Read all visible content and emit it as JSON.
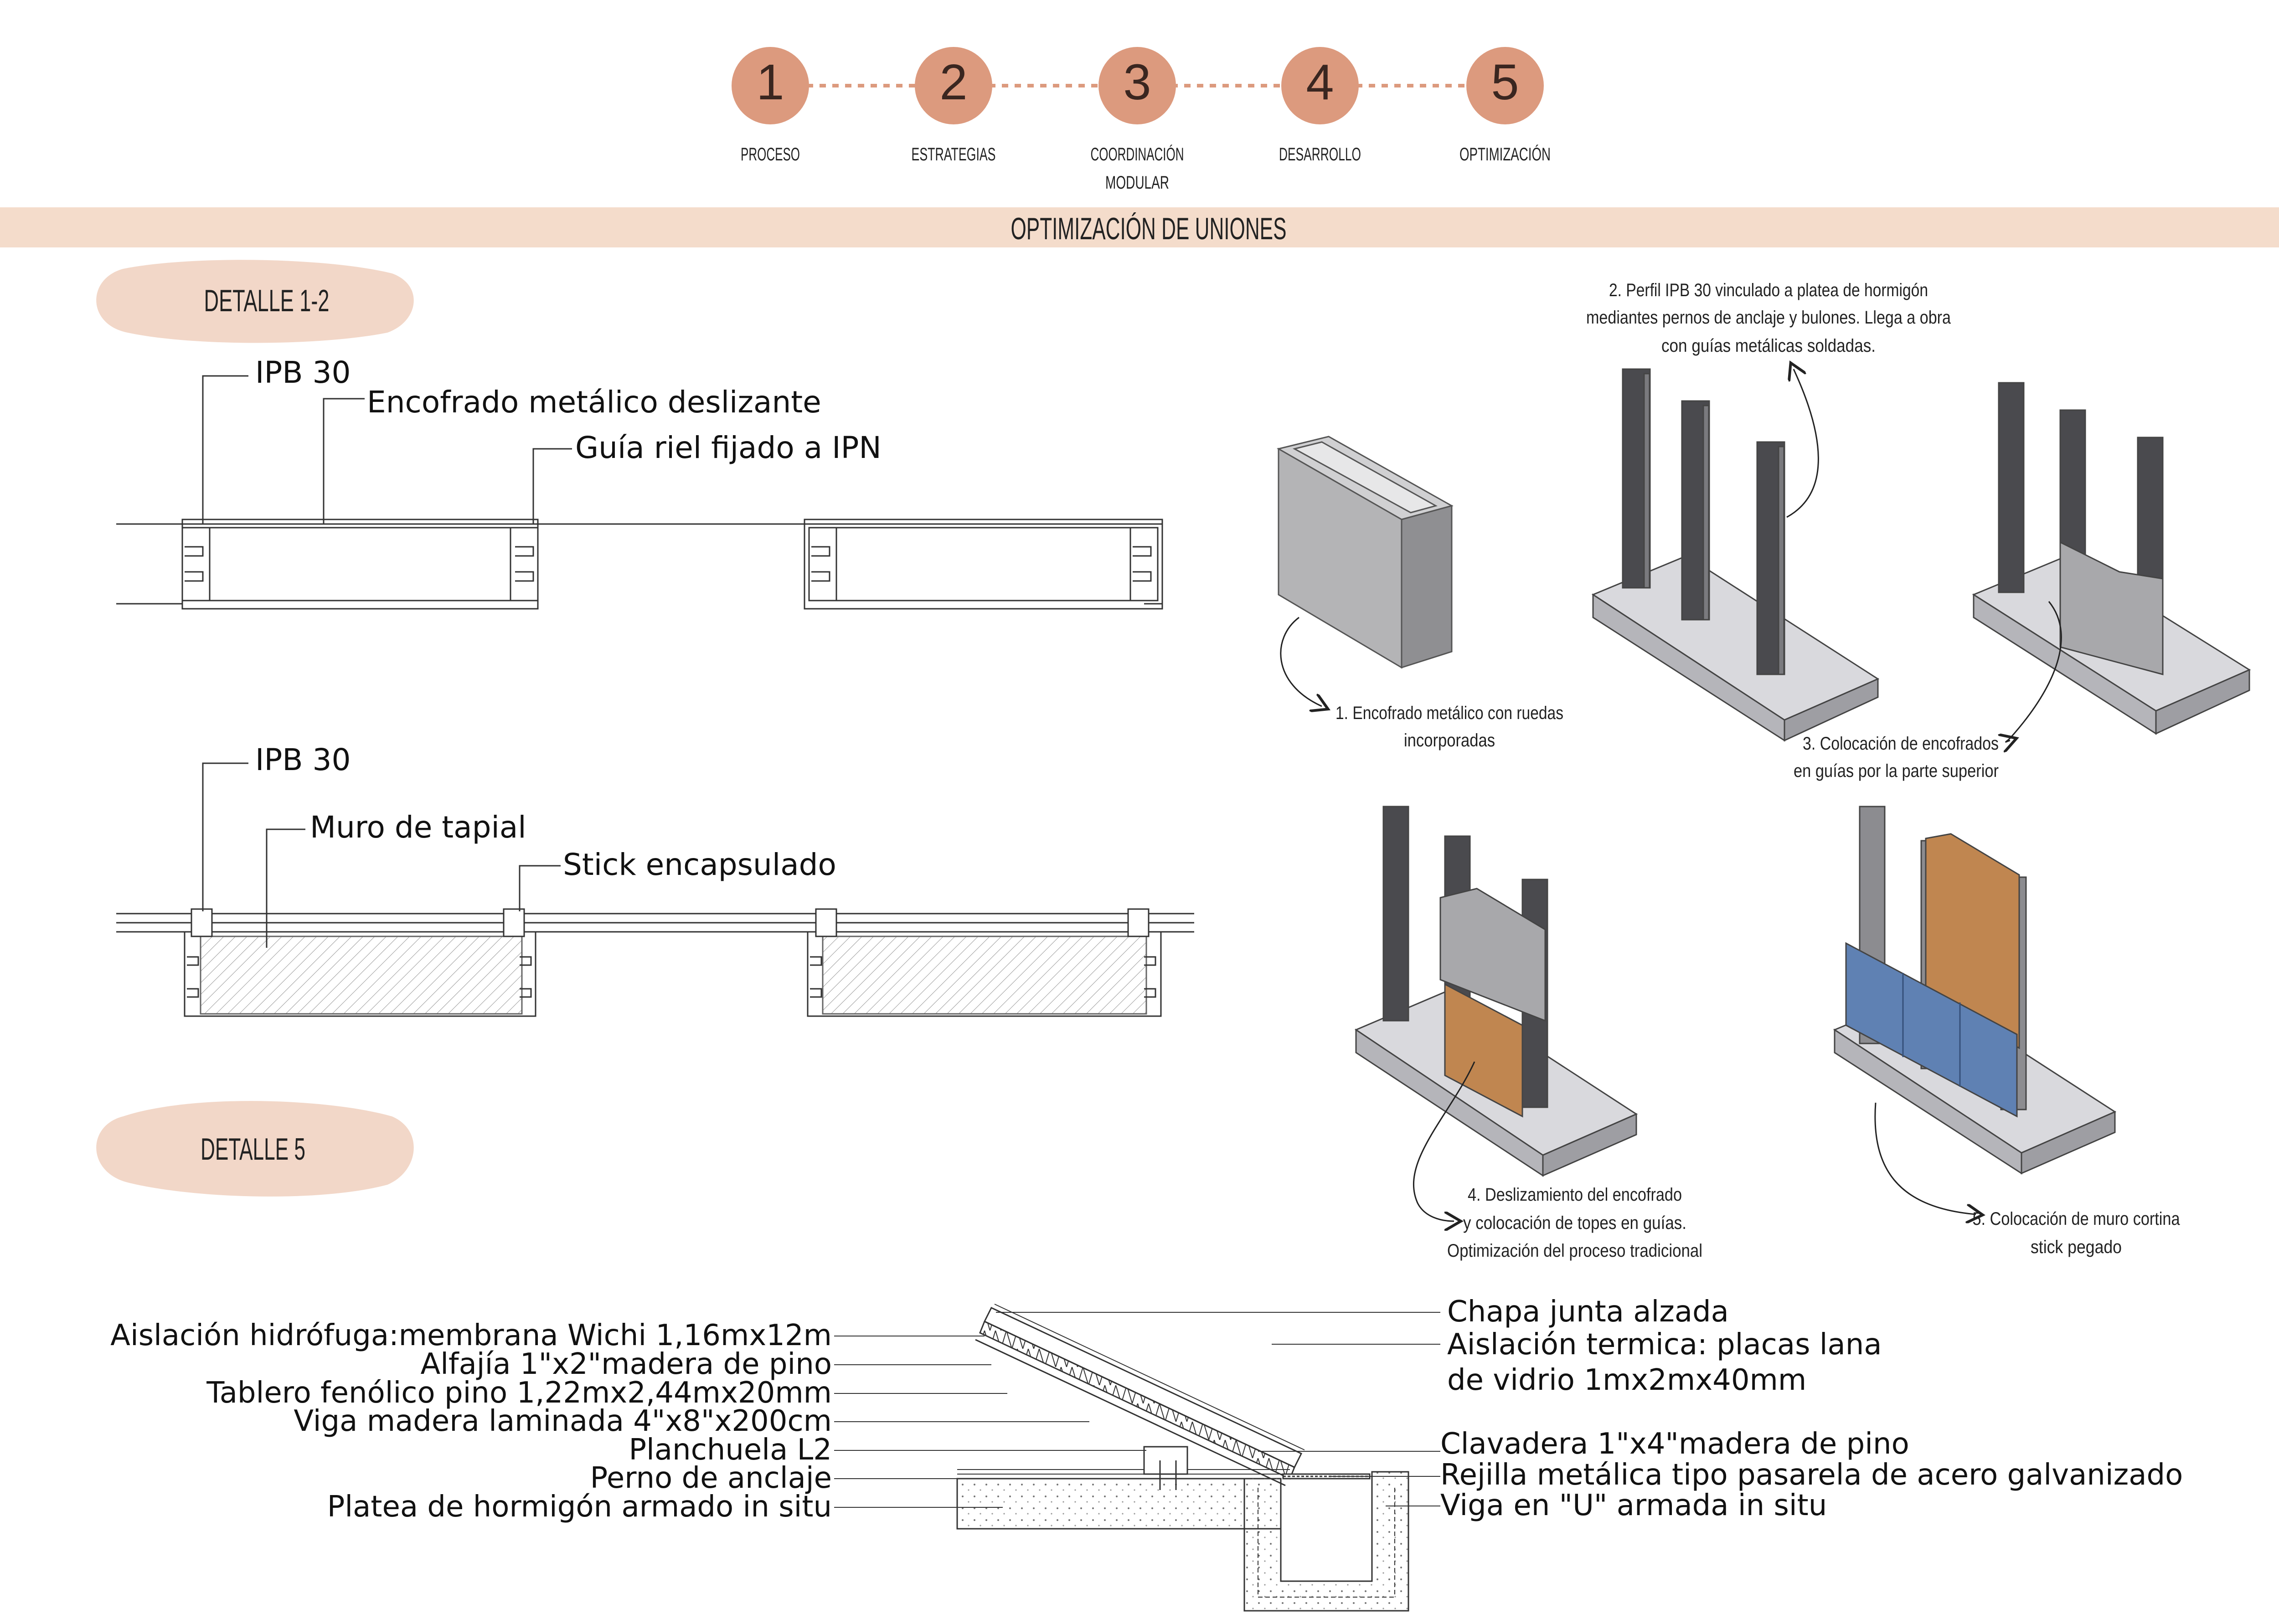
{
  "steps": [
    {
      "num": "1",
      "label": "PROCESO"
    },
    {
      "num": "2",
      "label": "ESTRATEGIAS"
    },
    {
      "num": "3",
      "label": "COORDINACIÓN",
      "label2": "MODULAR"
    },
    {
      "num": "4",
      "label": "DESARROLLO"
    },
    {
      "num": "5",
      "label": "OPTIMIZACIÓN"
    }
  ],
  "colors": {
    "step_circle": "#dc9a7e",
    "step_line": "#dc9a7e",
    "banner": "#f4dccb",
    "blob": "#f2d7c8",
    "concrete": "#c9c9ce",
    "steel": "#4a4a4e",
    "formwork": "#a5a5a7",
    "wood": "#c08650",
    "curtain": "#5f81b3"
  },
  "banner": {
    "title": "OPTIMIZACIÓN DE UNIONES"
  },
  "detail12": {
    "badge": "DETALLE 1-2",
    "plan1": {
      "label_profile": "IPB  30",
      "label_formwork": "Encofrado metálico deslizante",
      "label_rail": "Guía riel fijado a IPN"
    },
    "plan2": {
      "label_profile": "IPB  30",
      "label_wall": "Muro de tapial",
      "label_stick": "Stick encapsulado"
    }
  },
  "detail5": {
    "badge": "DETALLE 5",
    "left_labels": [
      "Aislación hidrófuga:membrana Wichi 1,16mx12m",
      "Alfajía 1\"x2\"madera de pino",
      "Tablero fenólico pino 1,22mx2,44mx20mm",
      "Viga madera laminada 4\"x8\"x200cm",
      "Planchuela L2",
      "Perno de anclaje",
      "Platea de hormigón armado in situ"
    ],
    "right_labels": [
      "Chapa junta alzada",
      "Aislación termica: placas lana",
      "de vidrio 1mx2mx40mm",
      "Clavadera 1\"x4\"madera de pino",
      "Rejilla metálica tipo pasarela de acero galvanizado",
      "Viga en \"U\" armada in situ"
    ]
  },
  "sequence": {
    "note1": [
      "1. Encofrado metálico con ruedas",
      "incorporadas"
    ],
    "note2": [
      "2. Perfil IPB 30 vinculado a platea de hormigón",
      "mediantes pernos de anclaje y bulones. Llega a obra",
      "con guías metálicas soldadas."
    ],
    "note3": [
      "3. Colocación de encofrados",
      "en guías por la parte superior"
    ],
    "note4": [
      "4. Deslizamiento del encofrado",
      "y colocación de topes en guías.",
      "Optimización del proceso tradicional"
    ],
    "note5": [
      "5. Colocación de muro cortina",
      "stick pegado"
    ]
  }
}
